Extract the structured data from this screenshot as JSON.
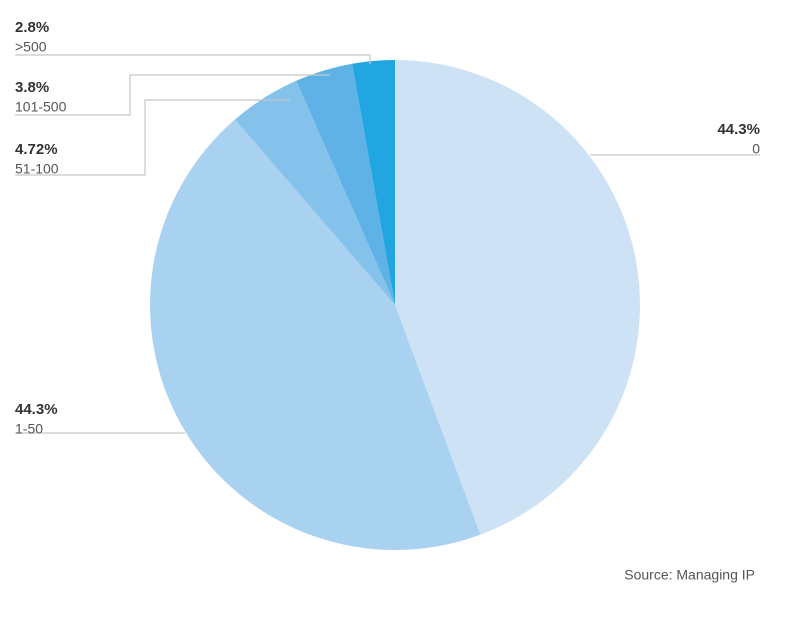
{
  "chart_data": {
    "type": "pie",
    "categories": [
      "0",
      "1-50",
      "51-100",
      "101-500",
      ">500"
    ],
    "values": [
      44.3,
      44.3,
      4.72,
      3.8,
      2.8
    ],
    "value_labels": [
      "44.3%",
      "44.3%",
      "4.72%",
      "3.8%",
      "2.8%"
    ],
    "colors": [
      "#cde3f5",
      "#a9d1f0",
      "#84c1eb",
      "#5fb2e6",
      "#22a6e2"
    ],
    "source": "Source: Managing IP"
  }
}
